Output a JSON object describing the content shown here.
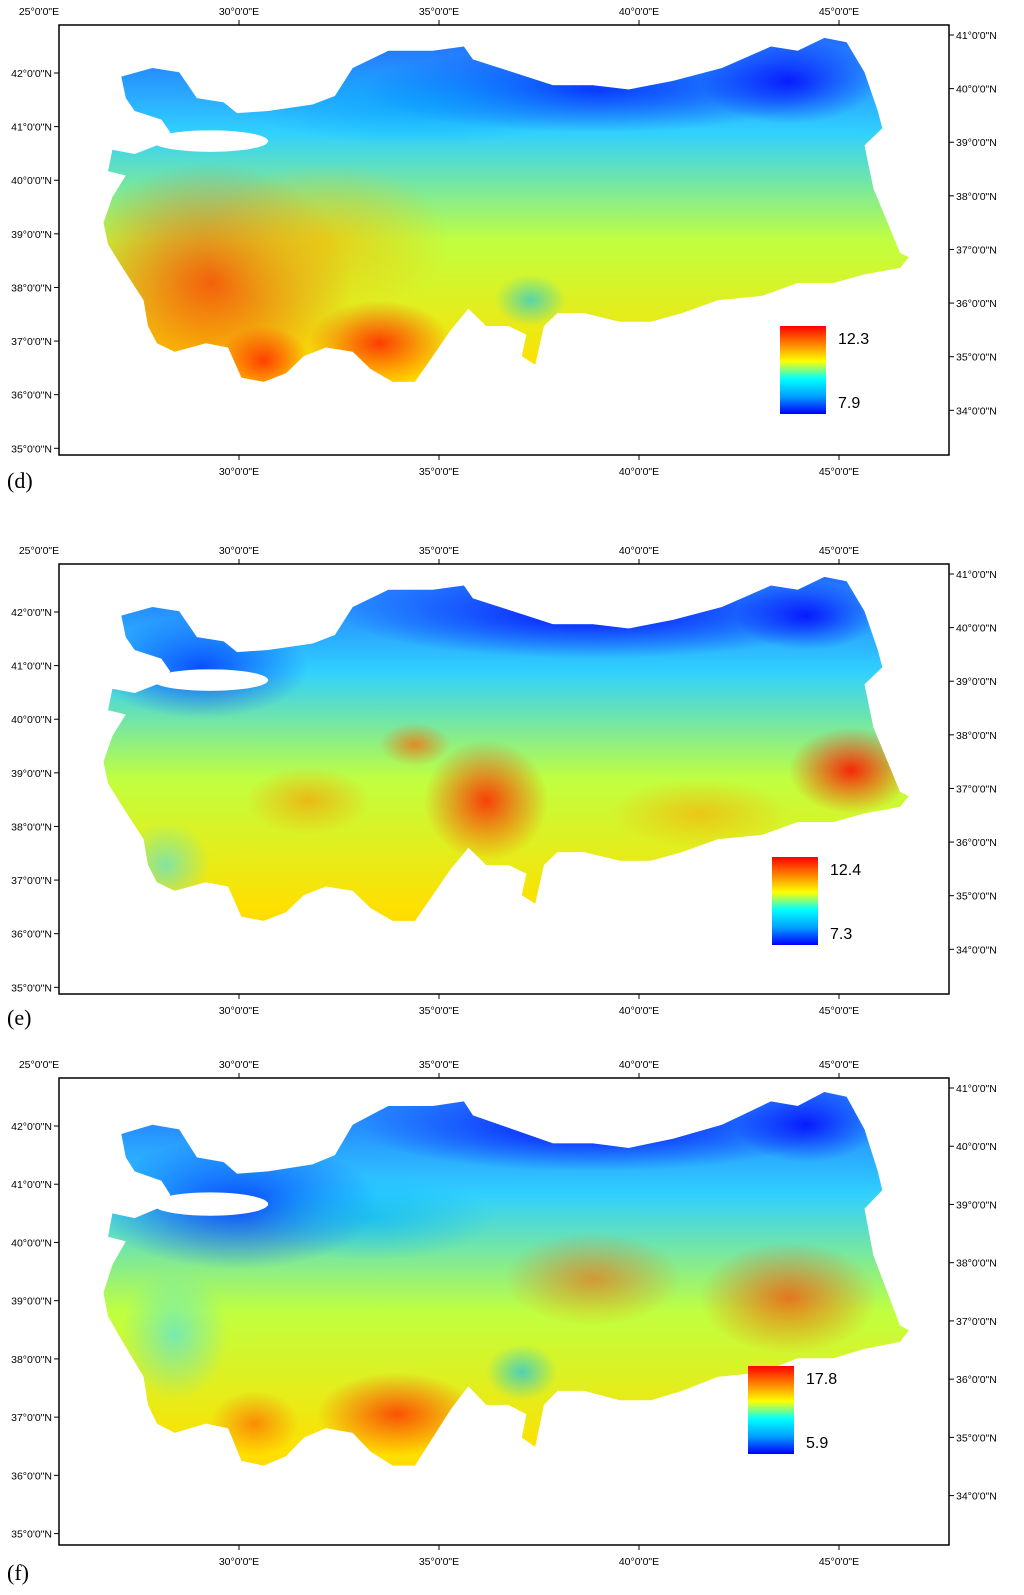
{
  "panels": [
    {
      "id": "d",
      "label": "(d)",
      "top_longitudes": [
        "25°0'0\"E",
        "30°0'0\"E",
        "35°0'0\"E",
        "40°0'0\"E",
        "45°0'0\"E"
      ],
      "bottom_longitudes": [
        "30°0'0\"E",
        "35°0'0\"E",
        "40°0'0\"E",
        "45°0'0\"E"
      ],
      "left_latitudes": [
        "42°0'0\"N",
        "41°0'0\"N",
        "40°0'0\"N",
        "39°0'0\"N",
        "38°0'0\"N",
        "37°0'0\"N",
        "36°0'0\"N",
        "35°0'0\"N"
      ],
      "right_latitudes": [
        "41°0'0\"N",
        "40°0'0\"N",
        "39°0'0\"N",
        "38°0'0\"N",
        "37°0'0\"N",
        "36°0'0\"N",
        "35°0'0\"N",
        "34°0'0\"N"
      ],
      "legend": {
        "max": "12.3",
        "min": "7.9"
      },
      "pattern": "west-hot"
    },
    {
      "id": "e",
      "label": "(e)",
      "top_longitudes": [
        "25°0'0\"E",
        "30°0'0\"E",
        "35°0'0\"E",
        "40°0'0\"E",
        "45°0'0\"E"
      ],
      "bottom_longitudes": [
        "30°0'0\"E",
        "35°0'0\"E",
        "40°0'0\"E",
        "45°0'0\"E"
      ],
      "left_latitudes": [
        "42°0'0\"N",
        "41°0'0\"N",
        "40°0'0\"N",
        "39°0'0\"N",
        "38°0'0\"N",
        "37°0'0\"N",
        "36°0'0\"N",
        "35°0'0\"N"
      ],
      "right_latitudes": [
        "41°0'0\"N",
        "40°0'0\"N",
        "39°0'0\"N",
        "38°0'0\"N",
        "37°0'0\"N",
        "36°0'0\"N",
        "35°0'0\"N",
        "34°0'0\"N"
      ],
      "legend": {
        "max": "12.4",
        "min": "7.3"
      },
      "pattern": "central-hot"
    },
    {
      "id": "f",
      "label": "(f)",
      "top_longitudes": [
        "25°0'0\"E",
        "30°0'0\"E",
        "35°0'0\"E",
        "40°0'0\"E",
        "45°0'0\"E"
      ],
      "bottom_longitudes": [
        "30°0'0\"E",
        "35°0'0\"E",
        "40°0'0\"E",
        "45°0'0\"E"
      ],
      "left_latitudes": [
        "42°0'0\"N",
        "41°0'0\"N",
        "40°0'0\"N",
        "39°0'0\"N",
        "38°0'0\"N",
        "37°0'0\"N",
        "36°0'0\"N",
        "35°0'0\"N"
      ],
      "right_latitudes": [
        "41°0'0\"N",
        "40°0'0\"N",
        "39°0'0\"N",
        "38°0'0\"N",
        "37°0'0\"N",
        "36°0'0\"N",
        "35°0'0\"N",
        "34°0'0\"N"
      ],
      "legend": {
        "max": "17.8",
        "min": "5.9"
      },
      "pattern": "southeast-hot"
    }
  ],
  "colors": {
    "ramp": [
      "#0000ff",
      "#00a0ff",
      "#00ffff",
      "#ffff00",
      "#ff8000",
      "#ff0000"
    ],
    "frame": "#000000"
  }
}
